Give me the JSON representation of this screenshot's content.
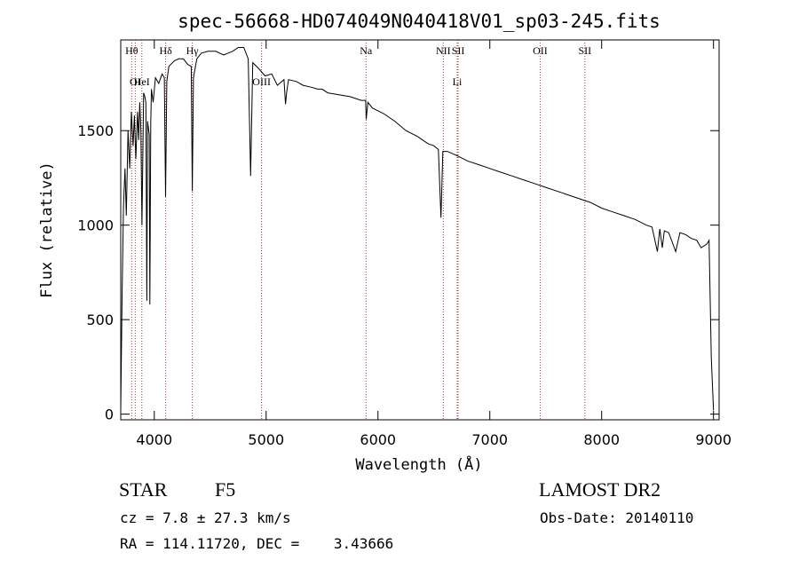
{
  "chart_data": {
    "type": "line",
    "title": "spec-56668-HD074049N040418V01_sp03-245.fits",
    "xlabel": "Wavelength (Å)",
    "ylabel": "Flux (relative)",
    "xlim": [
      3700,
      9050
    ],
    "ylim": [
      -30,
      1980
    ],
    "xticks": [
      4000,
      5000,
      6000,
      7000,
      8000,
      9000
    ],
    "yticks": [
      0,
      500,
      1000,
      1500
    ],
    "grid": false,
    "series": [
      {
        "color": "#000000",
        "x": [
          3700,
          3712,
          3725,
          3738,
          3750,
          3765,
          3780,
          3795,
          3810,
          3822,
          3835,
          3850,
          3860,
          3870,
          3880,
          3890,
          3905,
          3915,
          3925,
          3933,
          3940,
          3955,
          3960,
          3968,
          3975,
          3990,
          4010,
          4040,
          4070,
          4090,
          4101,
          4112,
          4130,
          4180,
          4220,
          4260,
          4300,
          4330,
          4340,
          4350,
          4380,
          4420,
          4480,
          4550,
          4620,
          4700,
          4750,
          4800,
          4840,
          4861,
          4880,
          4930,
          4990,
          5050,
          5100,
          5160,
          5173,
          5183,
          5200,
          5270,
          5330,
          5400,
          5460,
          5500,
          5550,
          5650,
          5750,
          5850,
          5890,
          5895,
          5910,
          5950,
          6050,
          6150,
          6250,
          6350,
          6450,
          6500,
          6540,
          6563,
          6580,
          6620,
          6700,
          6800,
          6900,
          7000,
          7100,
          7200,
          7300,
          7400,
          7500,
          7600,
          7700,
          7800,
          7900,
          8000,
          8100,
          8200,
          8300,
          8400,
          8450,
          8498,
          8520,
          8542,
          8560,
          8600,
          8662,
          8700,
          8750,
          8800,
          8850,
          8890,
          8940,
          8960,
          8980,
          9000
        ],
        "y": [
          20,
          620,
          1100,
          1300,
          1050,
          1500,
          1300,
          1600,
          1420,
          1580,
          1350,
          1600,
          1450,
          1650,
          1500,
          1000,
          1700,
          1680,
          1650,
          600,
          1550,
          1480,
          580,
          1540,
          1720,
          1650,
          1780,
          1750,
          1800,
          1780,
          1150,
          1760,
          1840,
          1870,
          1880,
          1880,
          1850,
          1840,
          1180,
          1780,
          1880,
          1910,
          1920,
          1920,
          1900,
          1920,
          1940,
          1940,
          1880,
          1260,
          1860,
          1830,
          1790,
          1800,
          1740,
          1770,
          1640,
          1700,
          1770,
          1760,
          1740,
          1730,
          1720,
          1720,
          1700,
          1690,
          1680,
          1660,
          1660,
          1560,
          1650,
          1620,
          1590,
          1550,
          1500,
          1470,
          1430,
          1420,
          1400,
          1040,
          1390,
          1390,
          1370,
          1340,
          1320,
          1300,
          1280,
          1260,
          1240,
          1220,
          1200,
          1180,
          1160,
          1140,
          1120,
          1090,
          1070,
          1050,
          1030,
          1000,
          990,
          860,
          980,
          880,
          970,
          960,
          860,
          960,
          950,
          930,
          920,
          880,
          900,
          920,
          300,
          20
        ]
      }
    ],
    "lines": [
      {
        "name": "Hθ",
        "x": 3798,
        "row": 0
      },
      {
        "name": "OI",
        "x": 3830,
        "row": 1
      },
      {
        "name": "HeI",
        "x": 3889,
        "row": 1
      },
      {
        "name": "Hδ",
        "x": 4102,
        "row": 0
      },
      {
        "name": "Hγ",
        "x": 4340,
        "row": 0
      },
      {
        "name": "OIII",
        "x": 4959,
        "row": 1
      },
      {
        "name": "Na",
        "x": 5893,
        "row": 0
      },
      {
        "name": "NII",
        "x": 6584,
        "row": 0
      },
      {
        "name": "SII",
        "x": 6717,
        "row": 0
      },
      {
        "name": "Li",
        "x": 6708,
        "row": 1
      },
      {
        "name": "OII",
        "x": 7450,
        "row": 0
      },
      {
        "name": "SII",
        "x": 7850,
        "row": 0
      }
    ]
  },
  "info": {
    "class_label": "STAR",
    "subclass": "F5",
    "survey": "LAMOST DR2",
    "redshift": "cz = 7.8 ± 27.3 km/s",
    "obs_date": "Obs-Date: 20140110",
    "coords": "RA = 114.11720, DEC =    3.43666"
  }
}
